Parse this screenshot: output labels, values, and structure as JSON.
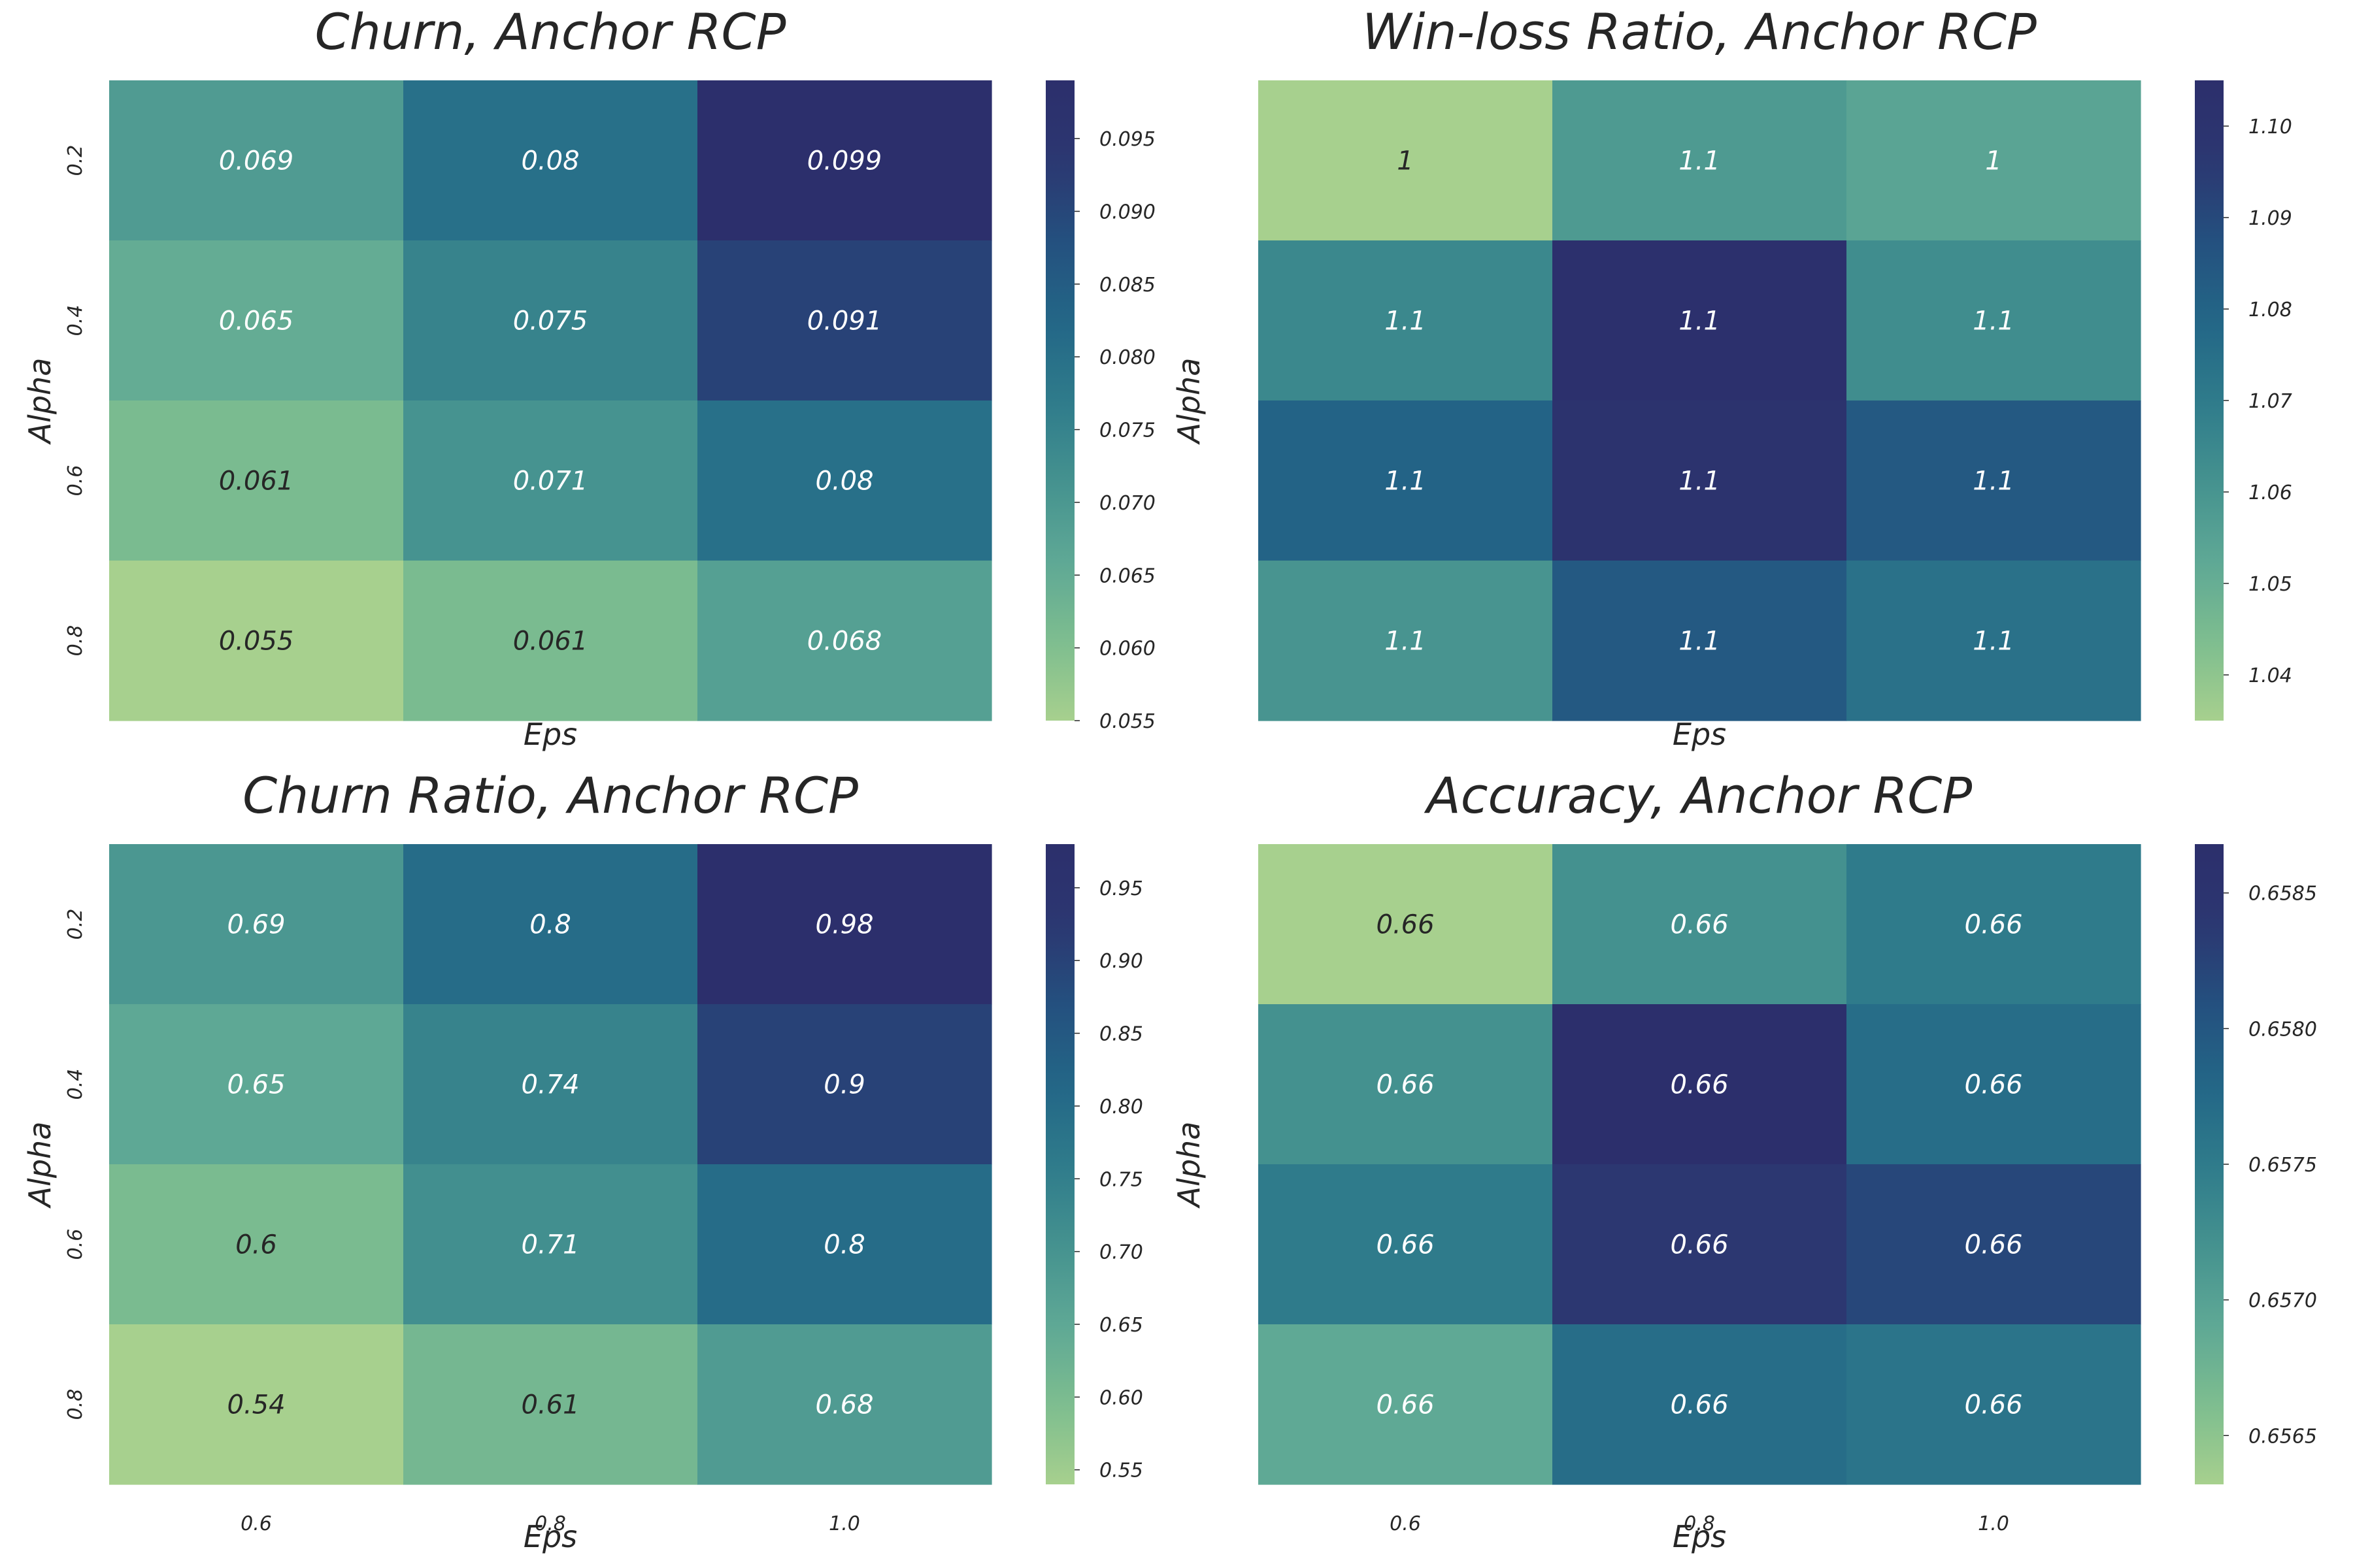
{
  "chart_data": [
    {
      "type": "heatmap",
      "title": "Churn, Anchor RCP",
      "xlabel": "Eps",
      "ylabel": "Alpha",
      "x_categories": [
        "0.6",
        "0.8",
        "1.0"
      ],
      "y_categories": [
        "0.2",
        "0.4",
        "0.6",
        "0.8"
      ],
      "values": [
        [
          0.069,
          0.08,
          0.099
        ],
        [
          0.065,
          0.075,
          0.091
        ],
        [
          0.061,
          0.071,
          0.08
        ],
        [
          0.055,
          0.061,
          0.068
        ]
      ],
      "annotations": [
        [
          "0.069",
          "0.08",
          "0.099"
        ],
        [
          "0.065",
          "0.075",
          "0.091"
        ],
        [
          "0.061",
          "0.071",
          "0.08"
        ],
        [
          "0.055",
          "0.061",
          "0.068"
        ]
      ],
      "colorbar": {
        "min": 0.055,
        "max": 0.099,
        "ticks": [
          "0.055",
          "0.060",
          "0.065",
          "0.070",
          "0.075",
          "0.080",
          "0.085",
          "0.090",
          "0.095"
        ]
      },
      "show_x_ticklabels": false,
      "show_y_ticklabels": true
    },
    {
      "type": "heatmap",
      "title": "Win-loss Ratio, Anchor RCP",
      "xlabel": "Eps",
      "ylabel": "Alpha",
      "x_categories": [
        "0.6",
        "0.8",
        "1.0"
      ],
      "y_categories": [
        "0.2",
        "0.4",
        "0.6",
        "0.8"
      ],
      "values": [
        [
          1.035,
          1.058,
          1.054
        ],
        [
          1.065,
          1.104,
          1.063
        ],
        [
          1.08,
          1.101,
          1.084
        ],
        [
          1.06,
          1.084,
          1.074
        ]
      ],
      "annotations": [
        [
          "1",
          "1.1",
          "1"
        ],
        [
          "1.1",
          "1.1",
          "1.1"
        ],
        [
          "1.1",
          "1.1",
          "1.1"
        ],
        [
          "1.1",
          "1.1",
          "1.1"
        ]
      ],
      "colorbar": {
        "min": 1.035,
        "max": 1.105,
        "ticks": [
          "1.04",
          "1.05",
          "1.06",
          "1.07",
          "1.08",
          "1.09",
          "1.10"
        ]
      },
      "show_x_ticklabels": false,
      "show_y_ticklabels": false
    },
    {
      "type": "heatmap",
      "title": "Churn Ratio, Anchor RCP",
      "xlabel": "Eps",
      "ylabel": "Alpha",
      "x_categories": [
        "0.6",
        "0.8",
        "1.0"
      ],
      "y_categories": [
        "0.2",
        "0.4",
        "0.6",
        "0.8"
      ],
      "values": [
        [
          0.69,
          0.8,
          0.98
        ],
        [
          0.65,
          0.74,
          0.9
        ],
        [
          0.6,
          0.71,
          0.8
        ],
        [
          0.54,
          0.61,
          0.68
        ]
      ],
      "annotations": [
        [
          "0.69",
          "0.8",
          "0.98"
        ],
        [
          "0.65",
          "0.74",
          "0.9"
        ],
        [
          "0.6",
          "0.71",
          "0.8"
        ],
        [
          "0.54",
          "0.61",
          "0.68"
        ]
      ],
      "colorbar": {
        "min": 0.54,
        "max": 0.98,
        "ticks": [
          "0.55",
          "0.60",
          "0.65",
          "0.70",
          "0.75",
          "0.80",
          "0.85",
          "0.90",
          "0.95"
        ]
      },
      "show_x_ticklabels": true,
      "show_y_ticklabels": true
    },
    {
      "type": "heatmap",
      "title": "Accuracy, Anchor RCP",
      "xlabel": "Eps",
      "ylabel": "Alpha",
      "x_categories": [
        "0.6",
        "0.8",
        "1.0"
      ],
      "y_categories": [
        "0.2",
        "0.4",
        "0.6",
        "0.8"
      ],
      "values": [
        [
          0.6563,
          0.6572,
          0.6575
        ],
        [
          0.6572,
          0.6587,
          0.6577
        ],
        [
          0.6575,
          0.6584,
          0.6582
        ],
        [
          0.6569,
          0.6577,
          0.6576
        ]
      ],
      "annotations": [
        [
          "0.66",
          "0.66",
          "0.66"
        ],
        [
          "0.66",
          "0.66",
          "0.66"
        ],
        [
          "0.66",
          "0.66",
          "0.66"
        ],
        [
          "0.66",
          "0.66",
          "0.66"
        ]
      ],
      "colorbar": {
        "min": 0.65632,
        "max": 0.65868,
        "ticks": [
          "0.6565",
          "0.6570",
          "0.6575",
          "0.6580",
          "0.6585"
        ]
      },
      "show_x_ticklabels": true,
      "show_y_ticklabels": false
    }
  ],
  "colors": {
    "colormap": [
      "#a7d08e",
      "#7dbd8f",
      "#5ea895",
      "#44918f",
      "#2f7b8b",
      "#236687",
      "#24507f",
      "#2c3771",
      "#2c2f6c"
    ],
    "light_text": "#ffffff",
    "dark_text": "#262626",
    "axis_text": "#262626"
  }
}
